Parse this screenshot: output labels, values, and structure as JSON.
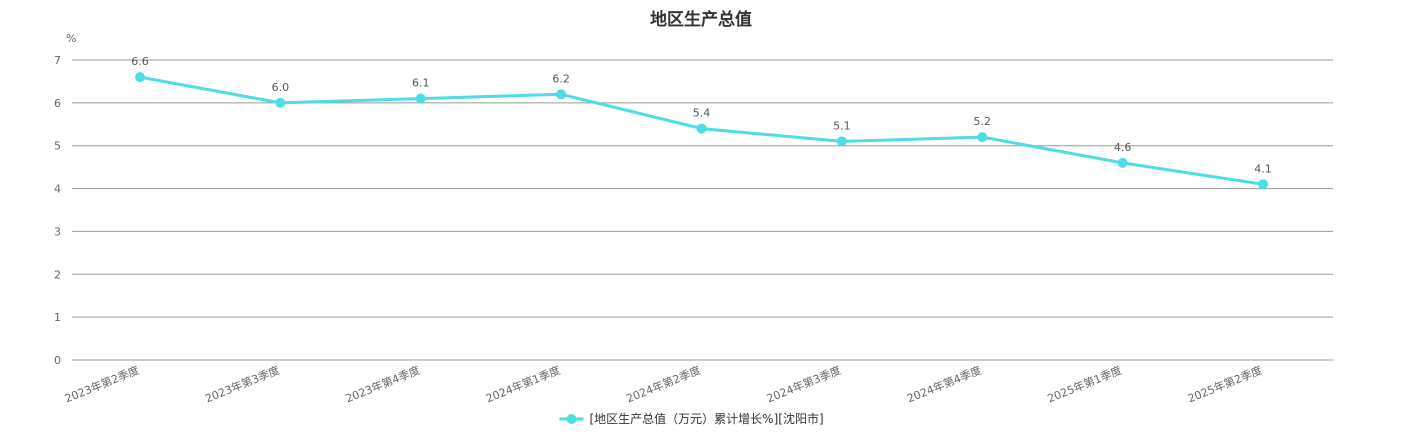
{
  "chart_data": {
    "type": "line",
    "title": "地区生产总值",
    "ylabel": "%",
    "xlabel": "",
    "ylim": [
      0,
      7
    ],
    "yticks": [
      0,
      1,
      2,
      3,
      4,
      5,
      6,
      7
    ],
    "grid": true,
    "legend_position": "bottom",
    "categories": [
      "2023年第2季度",
      "2023年第3季度",
      "2023年第4季度",
      "2024年第1季度",
      "2024年第2季度",
      "2024年第3季度",
      "2024年第4季度",
      "2025年第1季度",
      "2025年第2季度"
    ],
    "series": [
      {
        "name": "[地区生产总值（万元）累计增长%][沈阳市]",
        "color": "#4ddde3",
        "values": [
          6.6,
          6.0,
          6.1,
          6.2,
          5.4,
          5.1,
          5.2,
          4.6,
          4.1
        ],
        "labels": [
          "6.6",
          "6.0",
          "6.1",
          "6.2",
          "5.4",
          "5.1",
          "5.2",
          "4.6",
          "4.1"
        ]
      }
    ]
  }
}
